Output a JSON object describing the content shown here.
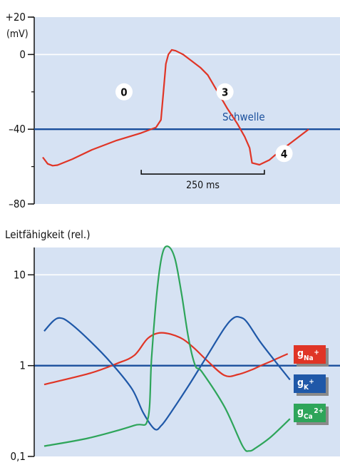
{
  "colors": {
    "panel_bg": "#d6e2f3",
    "axis": "#111111",
    "grid": "#ffffff",
    "threshold": "#1a4f9c",
    "na": "#e03526",
    "k": "#1f58a8",
    "ca": "#2ea55a",
    "legend_shadow": "#8a8a8a"
  },
  "chart_data": [
    {
      "type": "line",
      "y_unit": "(mV)",
      "ylim": [
        -80,
        20
      ],
      "y_ticks": [
        {
          "value": 20,
          "label": "+20"
        },
        {
          "value": 0,
          "label": "0"
        },
        {
          "value": -40,
          "label": "–40"
        },
        {
          "value": -80,
          "label": "–80"
        }
      ],
      "xlim": [
        0,
        550
      ],
      "x_unit": "ms",
      "grid": true,
      "series": [
        {
          "color": "#e03526",
          "x": [
            0,
            10,
            20,
            30,
            60,
            100,
            150,
            200,
            230,
            240,
            245,
            250,
            255,
            262,
            270,
            285,
            300,
            320,
            335,
            355,
            375,
            395,
            410,
            420,
            425,
            440,
            460,
            480,
            500,
            520,
            540
          ],
          "y": [
            -55,
            -58.5,
            -59.5,
            -59.2,
            -56,
            -51,
            -46,
            -42,
            -39,
            -35,
            -20,
            -5,
            0,
            2.5,
            2,
            0,
            -3,
            -7,
            -11,
            -20,
            -29,
            -37,
            -44,
            -50,
            -58,
            -59,
            -56.5,
            -52,
            -48,
            -44,
            -40
          ]
        }
      ],
      "threshold": {
        "value": -40,
        "label": "Schwelle"
      },
      "phase_labels": [
        {
          "text": "0",
          "x": 165,
          "y": -20
        },
        {
          "text": "3",
          "x": 370,
          "y": -20
        },
        {
          "text": "4",
          "x": 490,
          "y": -53
        }
      ],
      "scale_bar": {
        "x0": 200,
        "length": 250,
        "label": "250 ms",
        "y": -64
      }
    },
    {
      "type": "line",
      "title": "Leitfähigkeit (rel.)",
      "y_scale": "log",
      "ylim": [
        0.1,
        20
      ],
      "y_ticks": [
        {
          "value": 10,
          "label": "10"
        },
        {
          "value": 1,
          "label": "1"
        },
        {
          "value": 0.1,
          "label": "0,1"
        }
      ],
      "xlim": [
        0,
        550
      ],
      "grid": true,
      "reference_line": 1,
      "series": [
        {
          "id": "na",
          "name": "Na",
          "superscript": "+",
          "color": "#e03526",
          "x": [
            0,
            100,
            160,
            200,
            230,
            260,
            300,
            330,
            360,
            400,
            430,
            460,
            480,
            500,
            520,
            540
          ],
          "y": [
            0.62,
            0.82,
            1.05,
            1.3,
            2.0,
            2.3,
            2.05,
            1.6,
            1.15,
            0.78,
            0.8,
            0.9,
            1.0,
            1.1,
            1.22,
            1.35
          ]
        },
        {
          "id": "k",
          "name": "K",
          "superscript": "+",
          "color": "#1f58a8",
          "x": [
            0,
            20,
            35,
            55,
            100,
            150,
            195,
            220,
            245,
            260,
            280,
            320,
            360,
            400,
            420,
            435,
            450,
            480,
            520,
            545
          ],
          "y": [
            2.4,
            3.1,
            3.35,
            3.0,
            1.9,
            1.05,
            0.55,
            0.3,
            0.2,
            0.22,
            0.3,
            0.6,
            1.25,
            2.6,
            3.35,
            3.4,
            3.0,
            1.8,
            1.0,
            0.7
          ]
        },
        {
          "id": "ca",
          "name": "Ca",
          "superscript": "2+",
          "color": "#2ea55a",
          "x": [
            0,
            100,
            200,
            230,
            238,
            250,
            262,
            275,
            290,
            305,
            320,
            335,
            350,
            400,
            440,
            455,
            470,
            500,
            530,
            545
          ],
          "y": [
            0.13,
            0.16,
            0.22,
            0.26,
            1.2,
            6.5,
            17,
            20.5,
            15,
            6,
            2,
            1.0,
            0.85,
            0.35,
            0.13,
            0.115,
            0.125,
            0.16,
            0.22,
            0.26
          ]
        }
      ]
    }
  ]
}
